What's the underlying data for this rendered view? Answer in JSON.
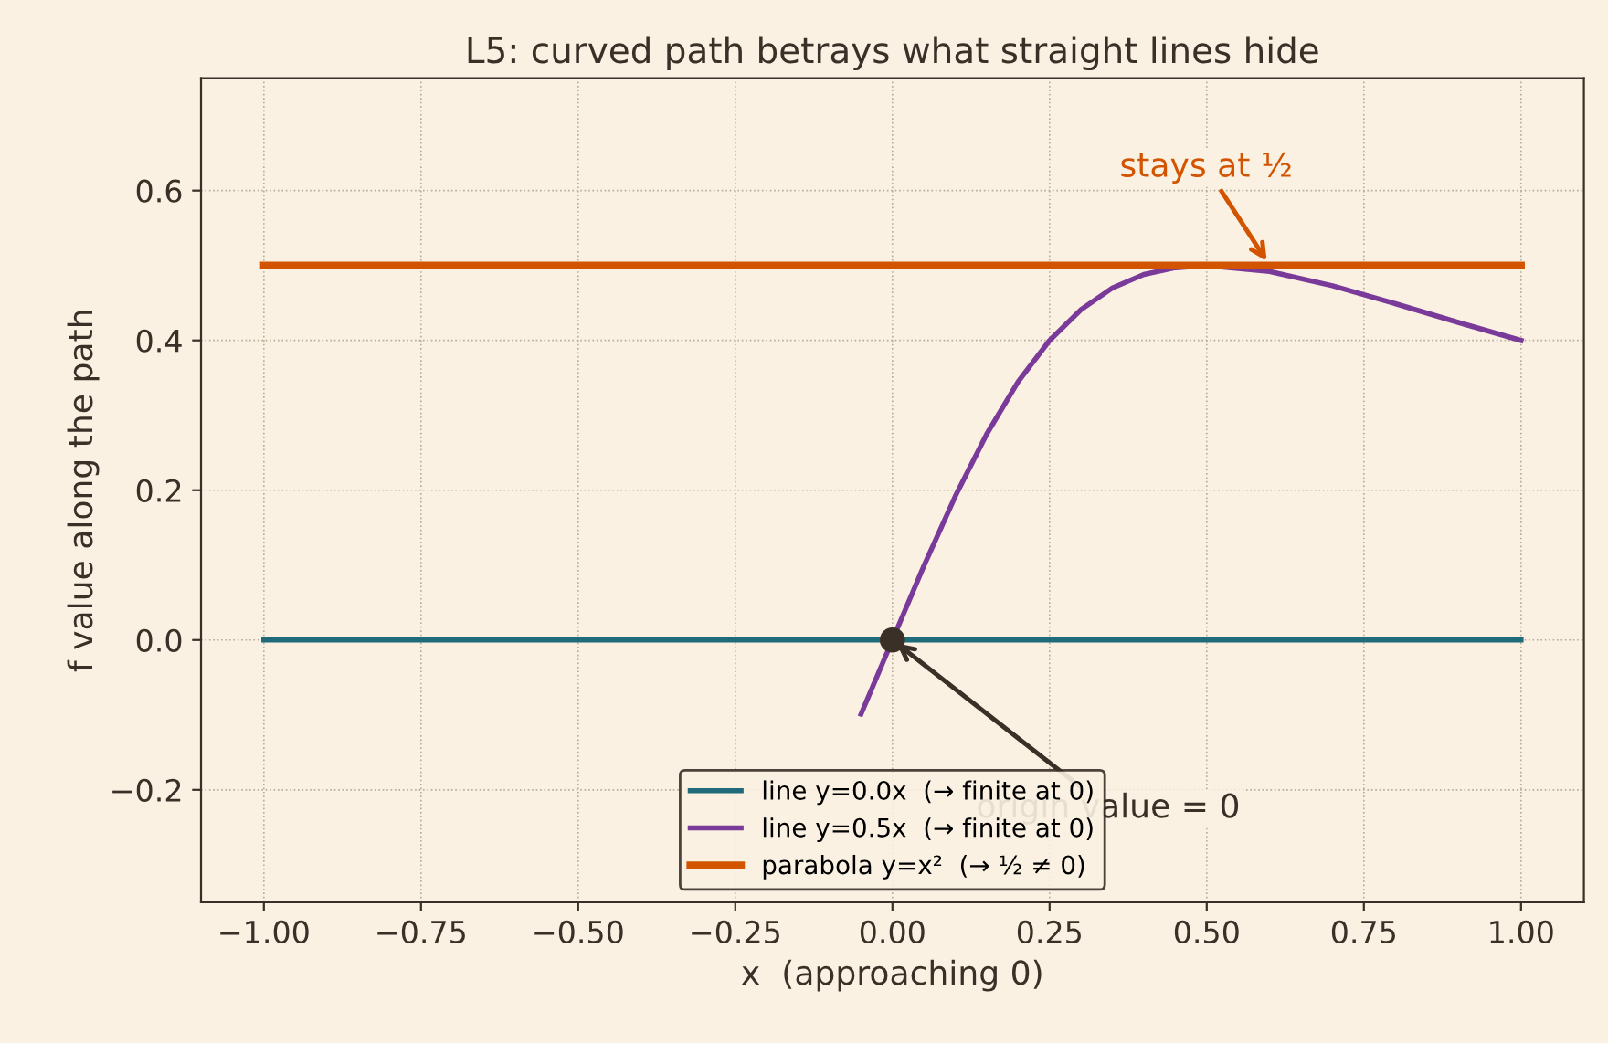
{
  "chart_data": {
    "type": "line",
    "title": "L5: curved path betrays what straight lines hide",
    "xlabel": "x  (approaching 0)",
    "ylabel": "f value along the path",
    "xlim": [
      -1.1,
      1.1
    ],
    "ylim": [
      -0.35,
      0.75
    ],
    "xticks": [
      {
        "value": -1,
        "label": "−1.00"
      },
      {
        "value": -0.75,
        "label": "−0.75"
      },
      {
        "value": -0.5,
        "label": "−0.50"
      },
      {
        "value": -0.25,
        "label": "−0.25"
      },
      {
        "value": 0,
        "label": "0.00"
      },
      {
        "value": 0.25,
        "label": "0.25"
      },
      {
        "value": 0.5,
        "label": "0.50"
      },
      {
        "value": 0.75,
        "label": "0.75"
      },
      {
        "value": 1,
        "label": "1.00"
      }
    ],
    "yticks": [
      {
        "value": -0.2,
        "label": "−0.2"
      },
      {
        "value": 0,
        "label": "0.0"
      },
      {
        "value": 0.2,
        "label": "0.2"
      },
      {
        "value": 0.4,
        "label": "0.4"
      },
      {
        "value": 0.6,
        "label": "0.6"
      }
    ],
    "grid": true,
    "legend": "bottom",
    "line_style": "solid",
    "marker": "none",
    "series": [
      {
        "name": "line y=0.0x  (→ finite at 0)",
        "color": "#1f6b7a",
        "x": [
          -1,
          1
        ],
        "values": [
          0,
          0
        ]
      },
      {
        "name": "line y=0.5x  (→ finite at 0)",
        "color": "#7a3a9a",
        "x": [
          -0.05,
          0,
          0.05,
          0.1,
          0.15,
          0.2,
          0.25,
          0.3,
          0.35,
          0.4,
          0.45,
          0.5,
          0.6,
          0.7,
          0.8,
          0.9,
          1.0
        ],
        "values": [
          -0.099,
          0,
          0.099,
          0.192,
          0.275,
          0.345,
          0.4,
          0.441,
          0.47,
          0.488,
          0.497,
          0.5,
          0.492,
          0.473,
          0.449,
          0.424,
          0.4
        ]
      },
      {
        "name": "parabola y=x²  (→ ½ ≠ 0)",
        "color": "#d35400",
        "x": [
          -1,
          1
        ],
        "values": [
          0.5,
          0.5
        ]
      },
      {
        "type": "scatter",
        "marker": "circle",
        "color": "#3a3028",
        "x": [
          0
        ],
        "values": [
          0
        ]
      }
    ],
    "annotations": [
      {
        "text": "stays at ½",
        "x": 0.6,
        "y": 0.5
      },
      {
        "text": "origin value = 0",
        "x": 0,
        "y": 0
      }
    ]
  }
}
